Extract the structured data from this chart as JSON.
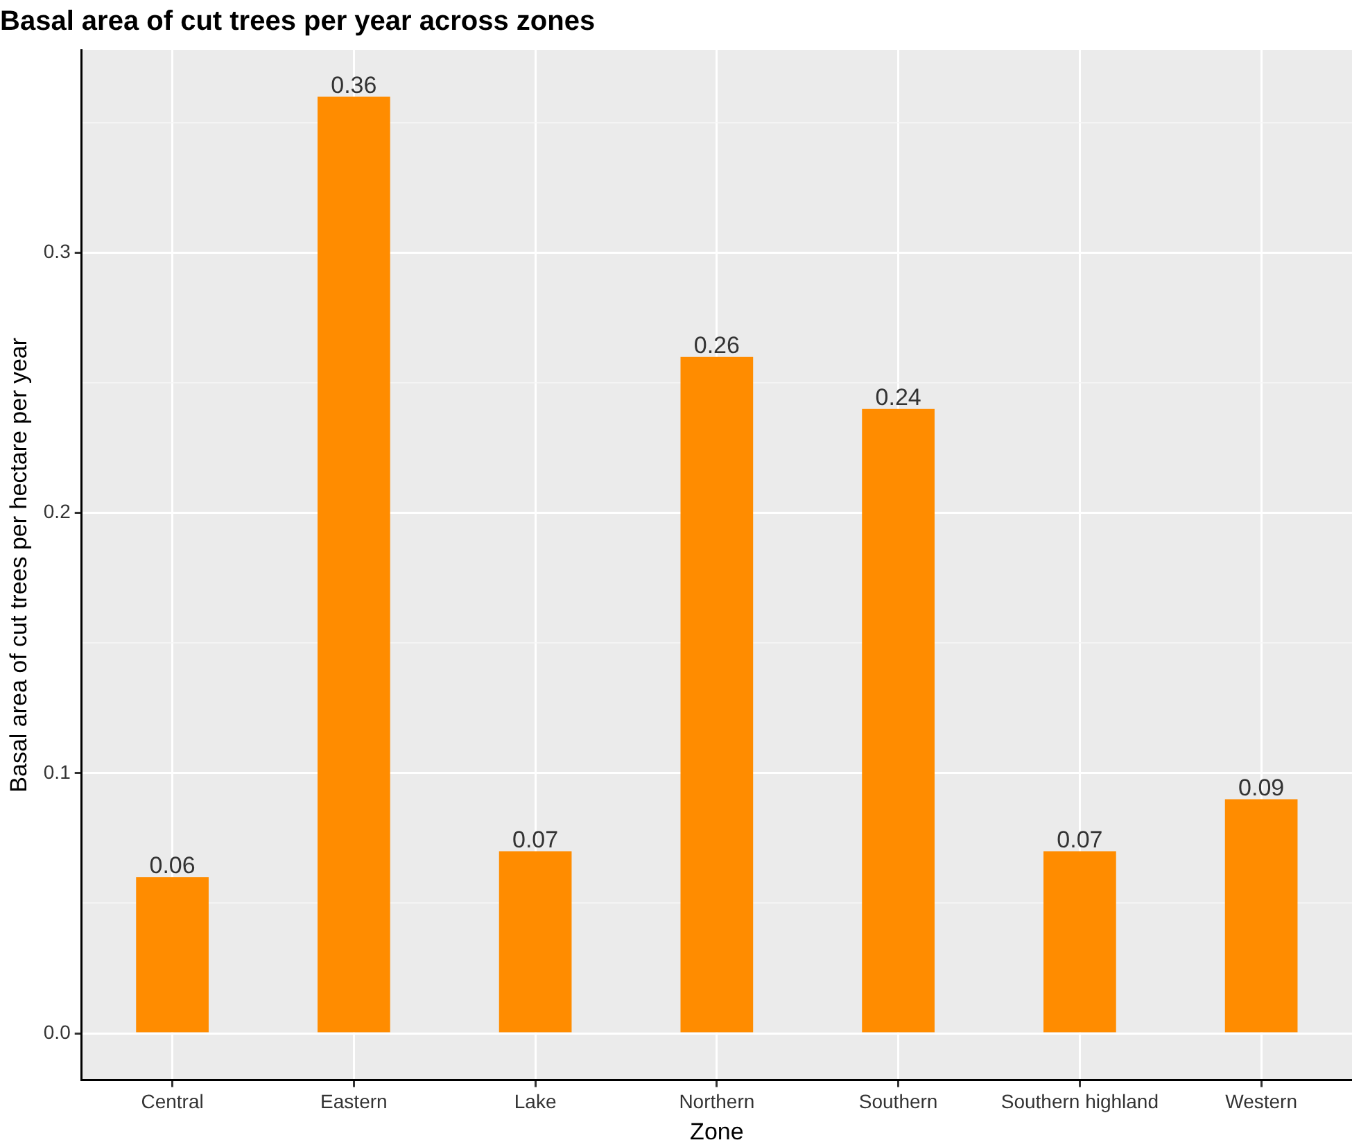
{
  "chart_data": {
    "type": "bar",
    "title": "Basal area of cut trees per year across zones",
    "xlabel": "Zone",
    "ylabel": "Basal area of cut trees per hectare per year",
    "categories": [
      "Central",
      "Eastern",
      "Lake",
      "Northern",
      "Southern",
      "Southern highland",
      "Western"
    ],
    "values": [
      0.06,
      0.36,
      0.07,
      0.26,
      0.24,
      0.07,
      0.09
    ],
    "color": "#ff8c00",
    "ylim": [
      -0.018,
      0.378
    ],
    "yticks": [
      {
        "value": 0,
        "label": "0.0"
      },
      {
        "value": 0.05,
        "label": null
      },
      {
        "value": 0.1,
        "label": "0.1"
      },
      {
        "value": 0.15,
        "label": null
      },
      {
        "value": 0.2,
        "label": "0.2"
      },
      {
        "value": 0.25,
        "label": null
      },
      {
        "value": 0.3,
        "label": "0.3"
      },
      {
        "value": 0.35,
        "label": null
      }
    ],
    "grid": true,
    "data_labels": true,
    "legend": false
  }
}
